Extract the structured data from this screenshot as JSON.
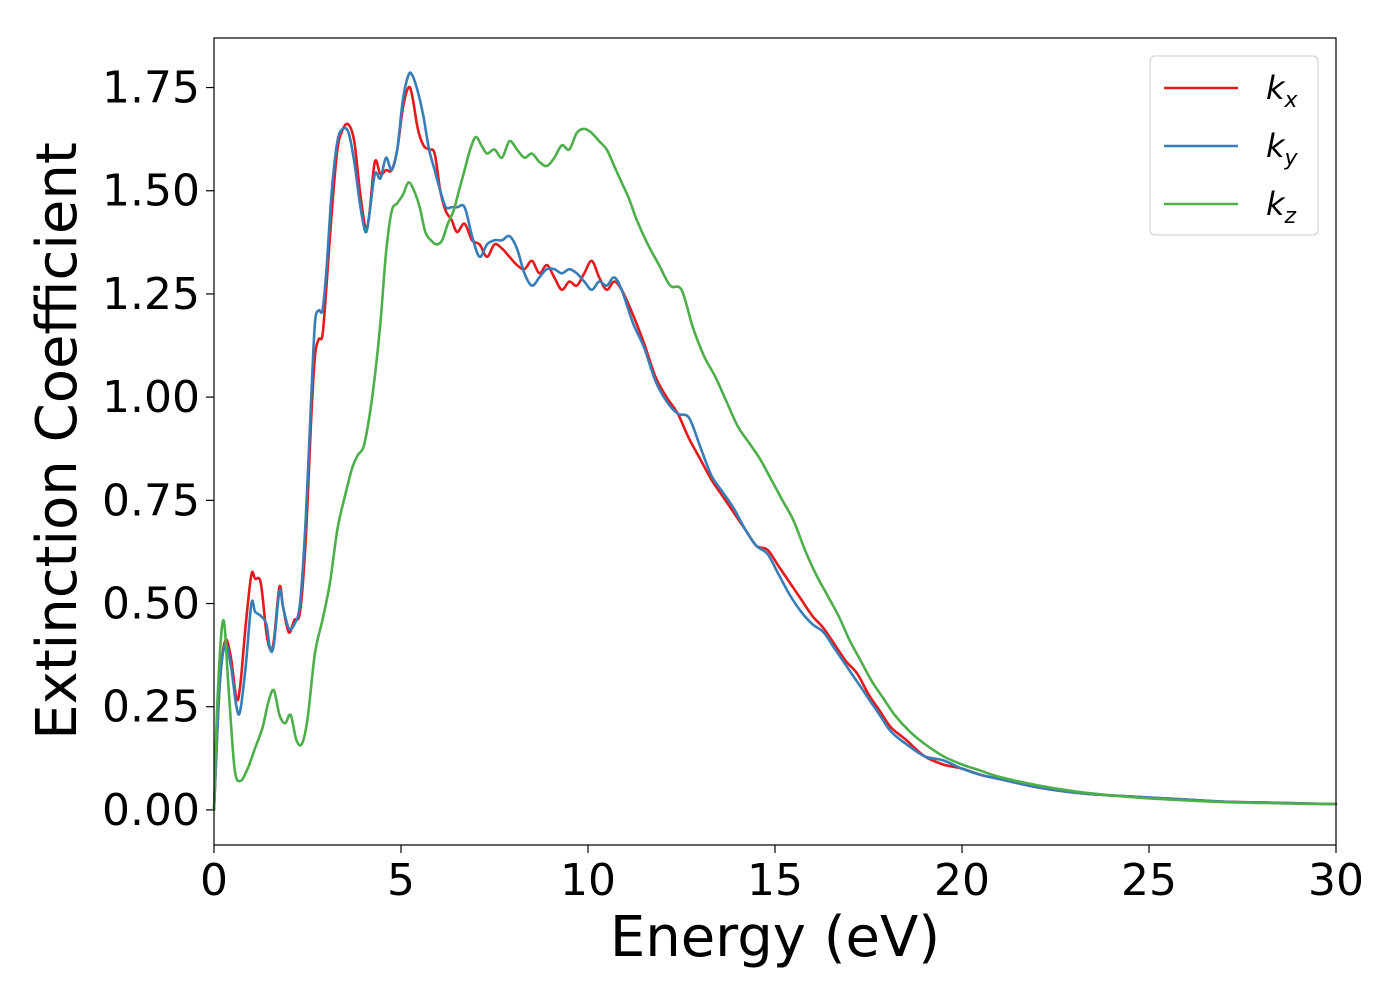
{
  "chart_data": {
    "type": "line",
    "xlabel": "Energy (eV)",
    "ylabel": "Extinction Coefficient",
    "xlim": [
      0,
      30
    ],
    "ylim": [
      -0.085,
      1.87
    ],
    "xticks": [
      0,
      5,
      10,
      15,
      20,
      25,
      30
    ],
    "xtick_labels": [
      "0",
      "5",
      "10",
      "15",
      "20",
      "25",
      "30"
    ],
    "yticks": [
      0,
      0.25,
      0.5,
      0.75,
      1.0,
      1.25,
      1.5,
      1.75
    ],
    "ytick_labels": [
      "0.00",
      "0.25",
      "0.50",
      "0.75",
      "1.00",
      "1.25",
      "1.50",
      "1.75"
    ],
    "grid": false,
    "legend_position": "top-right",
    "series": [
      {
        "name": "k_x",
        "label_base": "k",
        "label_sub": "x",
        "color": "#e41a1c",
        "x": [
          0,
          0.15,
          0.3,
          0.45,
          0.6,
          0.7,
          0.85,
          1.0,
          1.1,
          1.25,
          1.4,
          1.5,
          1.6,
          1.75,
          1.85,
          2.0,
          2.15,
          2.3,
          2.45,
          2.6,
          2.7,
          2.8,
          2.9,
          3.0,
          3.15,
          3.3,
          3.45,
          3.6,
          3.75,
          3.9,
          4.05,
          4.15,
          4.3,
          4.45,
          4.6,
          4.75,
          4.9,
          5.05,
          5.2,
          5.3,
          5.45,
          5.6,
          5.75,
          5.9,
          6.05,
          6.2,
          6.35,
          6.5,
          6.7,
          6.9,
          7.1,
          7.3,
          7.5,
          7.7,
          7.9,
          8.1,
          8.3,
          8.5,
          8.7,
          8.9,
          9.1,
          9.3,
          9.5,
          9.7,
          9.9,
          10.1,
          10.3,
          10.5,
          10.7,
          10.9,
          11.2,
          11.5,
          11.8,
          12.1,
          12.4,
          12.7,
          13.0,
          13.3,
          13.6,
          13.9,
          14.2,
          14.5,
          14.8,
          15.1,
          15.4,
          15.7,
          16.0,
          16.3,
          16.6,
          16.9,
          17.2,
          17.5,
          17.8,
          18.1,
          18.5,
          19.0,
          19.5,
          20.0,
          20.5,
          21.0,
          22.0,
          23.0,
          24.0,
          25.0,
          26.0,
          27.0,
          28.0,
          29.0,
          30.0
        ],
        "y": [
          0.0,
          0.3,
          0.41,
          0.37,
          0.27,
          0.3,
          0.45,
          0.57,
          0.56,
          0.55,
          0.43,
          0.39,
          0.41,
          0.54,
          0.49,
          0.43,
          0.46,
          0.48,
          0.65,
          0.95,
          1.1,
          1.14,
          1.15,
          1.26,
          1.45,
          1.6,
          1.65,
          1.66,
          1.62,
          1.5,
          1.41,
          1.44,
          1.57,
          1.54,
          1.55,
          1.55,
          1.6,
          1.7,
          1.75,
          1.73,
          1.65,
          1.61,
          1.6,
          1.59,
          1.5,
          1.45,
          1.43,
          1.4,
          1.42,
          1.38,
          1.37,
          1.34,
          1.37,
          1.36,
          1.34,
          1.32,
          1.31,
          1.33,
          1.3,
          1.32,
          1.29,
          1.26,
          1.28,
          1.27,
          1.3,
          1.33,
          1.29,
          1.26,
          1.28,
          1.26,
          1.2,
          1.13,
          1.05,
          1.0,
          0.96,
          0.9,
          0.85,
          0.8,
          0.76,
          0.72,
          0.68,
          0.64,
          0.63,
          0.59,
          0.55,
          0.51,
          0.47,
          0.44,
          0.4,
          0.36,
          0.33,
          0.28,
          0.24,
          0.2,
          0.17,
          0.13,
          0.11,
          0.1,
          0.085,
          0.075,
          0.055,
          0.042,
          0.035,
          0.03,
          0.025,
          0.02,
          0.018,
          0.016,
          0.014
        ]
      },
      {
        "name": "k_y",
        "label_base": "k",
        "label_sub": "y",
        "color": "#377eb8",
        "x": [
          0,
          0.15,
          0.3,
          0.45,
          0.6,
          0.7,
          0.85,
          1.0,
          1.1,
          1.25,
          1.4,
          1.5,
          1.6,
          1.75,
          1.85,
          2.0,
          2.15,
          2.3,
          2.45,
          2.6,
          2.7,
          2.8,
          2.9,
          3.0,
          3.15,
          3.3,
          3.45,
          3.6,
          3.75,
          3.9,
          4.05,
          4.15,
          4.3,
          4.45,
          4.6,
          4.75,
          4.9,
          5.05,
          5.2,
          5.3,
          5.45,
          5.6,
          5.75,
          5.9,
          6.05,
          6.2,
          6.35,
          6.5,
          6.7,
          6.9,
          7.1,
          7.3,
          7.5,
          7.7,
          7.9,
          8.1,
          8.3,
          8.5,
          8.7,
          8.9,
          9.1,
          9.3,
          9.5,
          9.7,
          9.9,
          10.1,
          10.3,
          10.5,
          10.7,
          10.9,
          11.2,
          11.5,
          11.8,
          12.1,
          12.4,
          12.7,
          13.0,
          13.3,
          13.6,
          13.9,
          14.2,
          14.5,
          14.8,
          15.1,
          15.4,
          15.7,
          16.0,
          16.3,
          16.6,
          16.9,
          17.2,
          17.5,
          17.8,
          18.1,
          18.5,
          19.0,
          19.5,
          20.0,
          20.5,
          21.0,
          22.0,
          23.0,
          24.0,
          25.0,
          26.0,
          27.0,
          28.0,
          29.0,
          30.0
        ],
        "y": [
          0.0,
          0.3,
          0.4,
          0.35,
          0.25,
          0.24,
          0.35,
          0.5,
          0.48,
          0.47,
          0.45,
          0.39,
          0.4,
          0.53,
          0.49,
          0.44,
          0.45,
          0.5,
          0.7,
          1.0,
          1.18,
          1.21,
          1.21,
          1.3,
          1.5,
          1.62,
          1.65,
          1.64,
          1.57,
          1.47,
          1.4,
          1.44,
          1.54,
          1.53,
          1.58,
          1.55,
          1.6,
          1.72,
          1.78,
          1.78,
          1.74,
          1.68,
          1.6,
          1.55,
          1.5,
          1.46,
          1.46,
          1.46,
          1.46,
          1.39,
          1.34,
          1.37,
          1.38,
          1.38,
          1.39,
          1.36,
          1.3,
          1.27,
          1.29,
          1.31,
          1.31,
          1.3,
          1.31,
          1.3,
          1.28,
          1.26,
          1.28,
          1.27,
          1.29,
          1.26,
          1.18,
          1.12,
          1.04,
          0.99,
          0.96,
          0.95,
          0.88,
          0.81,
          0.77,
          0.73,
          0.68,
          0.64,
          0.62,
          0.57,
          0.52,
          0.48,
          0.45,
          0.43,
          0.39,
          0.35,
          0.31,
          0.27,
          0.23,
          0.19,
          0.16,
          0.13,
          0.12,
          0.1,
          0.085,
          0.075,
          0.055,
          0.042,
          0.035,
          0.03,
          0.025,
          0.02,
          0.018,
          0.016,
          0.014
        ]
      },
      {
        "name": "k_z",
        "label_base": "k",
        "label_sub": "z",
        "color": "#4daf4a",
        "x": [
          0,
          0.1,
          0.25,
          0.4,
          0.55,
          0.7,
          0.9,
          1.1,
          1.3,
          1.45,
          1.6,
          1.75,
          1.9,
          2.05,
          2.2,
          2.35,
          2.5,
          2.7,
          2.9,
          3.1,
          3.3,
          3.5,
          3.7,
          3.85,
          4.0,
          4.15,
          4.3,
          4.45,
          4.6,
          4.75,
          4.9,
          5.05,
          5.2,
          5.35,
          5.5,
          5.65,
          5.8,
          5.95,
          6.1,
          6.25,
          6.4,
          6.55,
          6.7,
          6.85,
          7.0,
          7.15,
          7.3,
          7.5,
          7.7,
          7.9,
          8.1,
          8.3,
          8.5,
          8.7,
          8.9,
          9.1,
          9.3,
          9.5,
          9.7,
          9.9,
          10.1,
          10.3,
          10.5,
          10.7,
          10.9,
          11.1,
          11.3,
          11.6,
          11.9,
          12.2,
          12.5,
          12.8,
          13.1,
          13.4,
          13.7,
          14.0,
          14.3,
          14.6,
          14.9,
          15.2,
          15.5,
          15.8,
          16.1,
          16.4,
          16.7,
          17.0,
          17.3,
          17.6,
          17.9,
          18.2,
          18.6,
          19.0,
          19.5,
          20.0,
          20.5,
          21.0,
          22.0,
          23.0,
          24.0,
          25.0,
          26.0,
          27.0,
          28.0,
          29.0,
          30.0
        ],
        "y": [
          0.0,
          0.28,
          0.46,
          0.28,
          0.1,
          0.07,
          0.1,
          0.15,
          0.2,
          0.26,
          0.29,
          0.23,
          0.21,
          0.23,
          0.17,
          0.16,
          0.22,
          0.38,
          0.46,
          0.55,
          0.68,
          0.76,
          0.83,
          0.86,
          0.88,
          0.95,
          1.05,
          1.18,
          1.35,
          1.45,
          1.47,
          1.49,
          1.52,
          1.5,
          1.46,
          1.4,
          1.38,
          1.37,
          1.38,
          1.42,
          1.45,
          1.5,
          1.55,
          1.6,
          1.63,
          1.61,
          1.59,
          1.6,
          1.58,
          1.62,
          1.6,
          1.58,
          1.59,
          1.57,
          1.56,
          1.58,
          1.61,
          1.6,
          1.64,
          1.65,
          1.64,
          1.62,
          1.6,
          1.56,
          1.52,
          1.48,
          1.43,
          1.37,
          1.32,
          1.27,
          1.26,
          1.17,
          1.1,
          1.05,
          0.99,
          0.93,
          0.89,
          0.85,
          0.8,
          0.75,
          0.7,
          0.63,
          0.57,
          0.52,
          0.47,
          0.41,
          0.36,
          0.31,
          0.27,
          0.23,
          0.19,
          0.16,
          0.13,
          0.11,
          0.095,
          0.08,
          0.06,
          0.045,
          0.035,
          0.028,
          0.023,
          0.019,
          0.017,
          0.015,
          0.014
        ]
      }
    ]
  }
}
